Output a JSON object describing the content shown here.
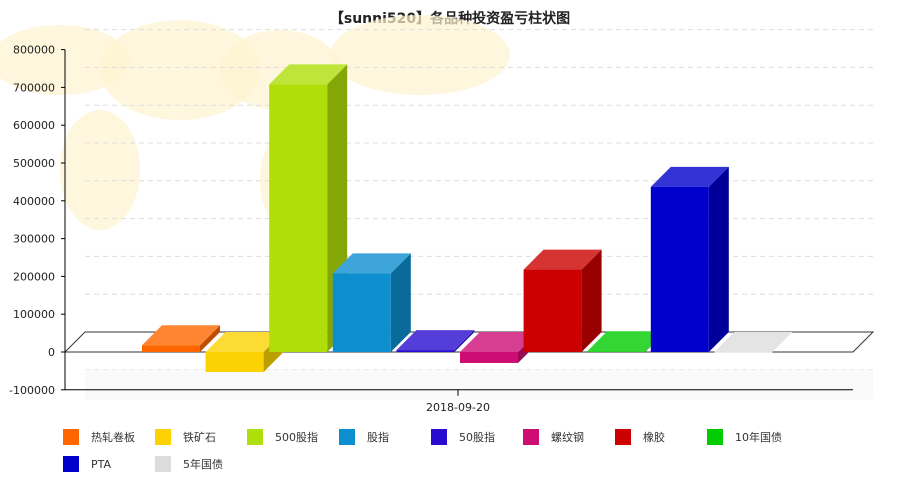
{
  "chart_data": {
    "type": "bar",
    "title": "【sunni520】各品种投资盈亏柱状图",
    "categories": [
      "2018-09-20"
    ],
    "xlabel": "",
    "ylabel": "",
    "ylim": [
      -100000,
      800000
    ],
    "yticks": [
      800000,
      700000,
      600000,
      500000,
      400000,
      300000,
      200000,
      100000,
      0,
      -100000
    ],
    "grid": true,
    "legend_position": "bottom",
    "series": [
      {
        "name": "热轧卷板",
        "values": [
          18000
        ],
        "color": "#ff6600"
      },
      {
        "name": "铁矿石",
        "values": [
          -53000
        ],
        "color": "#fcd202"
      },
      {
        "name": "500股指",
        "values": [
          708000
        ],
        "color": "#b0de09"
      },
      {
        "name": "股指",
        "values": [
          208000
        ],
        "color": "#0d8ecf"
      },
      {
        "name": "50股指",
        "values": [
          5000
        ],
        "color": "#2a0cd0"
      },
      {
        "name": "螺纹钢",
        "values": [
          -29000
        ],
        "color": "#cd0d74"
      },
      {
        "name": "橡胶",
        "values": [
          218000
        ],
        "color": "#cc0000"
      },
      {
        "name": "10年国债",
        "values": [
          2000
        ],
        "color": "#00cc00"
      },
      {
        "name": "PTA",
        "values": [
          437000
        ],
        "color": "#0000cc"
      },
      {
        "name": "5年国债",
        "values": [
          0
        ],
        "color": "#dddddd"
      }
    ]
  }
}
